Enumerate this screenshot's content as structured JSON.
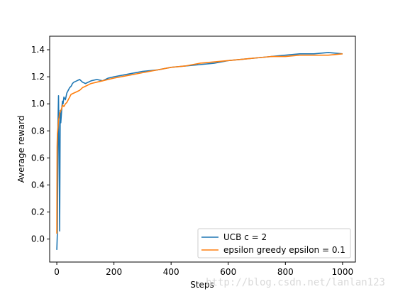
{
  "chart_data": {
    "type": "line",
    "title": "",
    "xlabel": "Steps",
    "ylabel": "Average reward",
    "xlim": [
      -25,
      1045
    ],
    "ylim": [
      -0.17,
      1.5
    ],
    "xticks": [
      0,
      200,
      400,
      600,
      800,
      1000
    ],
    "yticks": [
      0.0,
      0.2,
      0.4,
      0.6,
      0.8,
      1.0,
      1.2,
      1.4
    ],
    "xtick_labels": [
      "0",
      "200",
      "400",
      "600",
      "800",
      "1000"
    ],
    "ytick_labels": [
      "0.0",
      "0.2",
      "0.4",
      "0.6",
      "0.8",
      "1.0",
      "1.2",
      "1.4"
    ],
    "grid": false,
    "legend_position": "lower-right",
    "series": [
      {
        "name": "UCB c = 2",
        "color": "#1f77b4",
        "x": [
          0,
          2,
          4,
          6,
          8,
          10,
          12,
          14,
          16,
          18,
          20,
          22,
          25,
          30,
          35,
          40,
          45,
          50,
          55,
          60,
          70,
          80,
          90,
          100,
          120,
          140,
          160,
          180,
          200,
          250,
          300,
          350,
          400,
          450,
          500,
          550,
          600,
          650,
          700,
          750,
          800,
          850,
          900,
          950,
          1000
        ],
        "y": [
          -0.08,
          0.05,
          0.85,
          1.06,
          0.62,
          0.06,
          0.95,
          0.86,
          0.92,
          0.98,
          1.02,
          1.0,
          1.05,
          1.03,
          1.08,
          1.1,
          1.12,
          1.13,
          1.15,
          1.16,
          1.17,
          1.18,
          1.16,
          1.15,
          1.17,
          1.18,
          1.17,
          1.19,
          1.2,
          1.22,
          1.24,
          1.25,
          1.27,
          1.28,
          1.29,
          1.3,
          1.32,
          1.33,
          1.34,
          1.35,
          1.36,
          1.37,
          1.37,
          1.38,
          1.37
        ]
      },
      {
        "name": "epsilon greedy epsilon = 0.1",
        "color": "#ff7f0e",
        "x": [
          0,
          1,
          2,
          4,
          6,
          8,
          10,
          12,
          14,
          16,
          18,
          20,
          25,
          30,
          35,
          40,
          45,
          50,
          60,
          70,
          80,
          90,
          100,
          120,
          140,
          160,
          180,
          200,
          250,
          300,
          350,
          400,
          450,
          500,
          550,
          600,
          650,
          700,
          750,
          800,
          850,
          900,
          950,
          1000
        ],
        "y": [
          0.04,
          0.68,
          0.78,
          0.82,
          0.88,
          0.9,
          0.93,
          0.94,
          0.95,
          0.96,
          0.97,
          0.99,
          0.98,
          1.0,
          1.01,
          1.03,
          1.05,
          1.07,
          1.08,
          1.09,
          1.1,
          1.12,
          1.13,
          1.15,
          1.16,
          1.17,
          1.18,
          1.19,
          1.21,
          1.23,
          1.25,
          1.27,
          1.28,
          1.3,
          1.31,
          1.32,
          1.33,
          1.34,
          1.35,
          1.35,
          1.36,
          1.36,
          1.36,
          1.37
        ]
      }
    ]
  },
  "watermark": "http://blog.csdn.net/lanlan123"
}
